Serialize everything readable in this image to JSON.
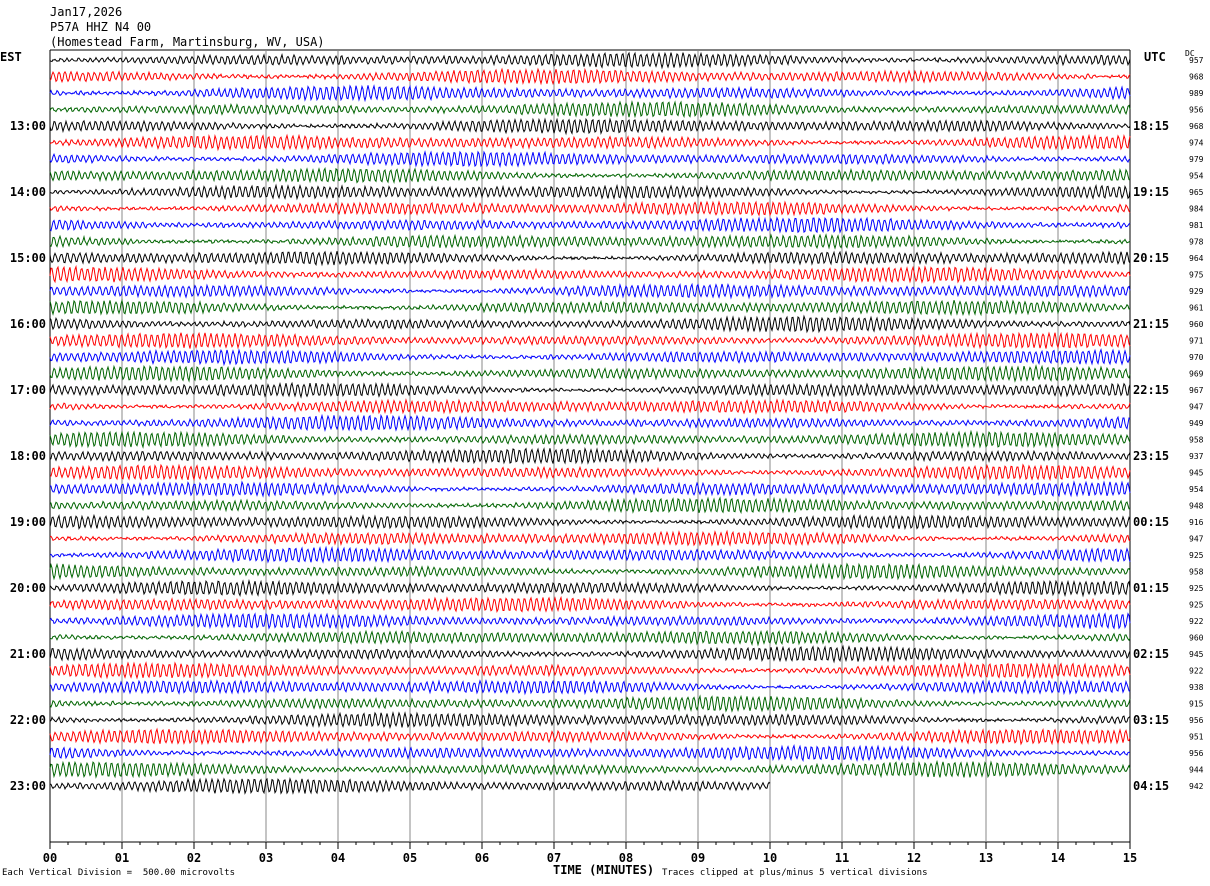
{
  "header": {
    "date": "Jan17,2026",
    "station": "P57A HHZ N4 00",
    "location": "(Homestead Farm, Martinsburg, WV, USA)"
  },
  "left_caption": "EST",
  "right_caption": "UTC",
  "dc_caption": "DC",
  "footer": {
    "scale": "Each Vertical Division =  500.00 microvolts",
    "xlabel": "TIME (MINUTES)",
    "clip_note": "Traces clipped at plus/minus 5 vertical divisions"
  },
  "colors": {
    "trace_cycle": [
      "#000000",
      "#ff0000",
      "#0000ff",
      "#006400"
    ]
  },
  "chart_data": {
    "type": "line",
    "title": "Jan17,2026 P57A HHZ N4 00",
    "xlabel": "TIME (MINUTES)",
    "xlim": [
      0,
      15
    ],
    "x_ticks": [
      "00",
      "01",
      "02",
      "03",
      "04",
      "05",
      "06",
      "07",
      "08",
      "09",
      "10",
      "11",
      "12",
      "13",
      "14",
      "15"
    ],
    "left_hour_labels": [
      "13:00",
      "14:00",
      "15:00",
      "16:00",
      "17:00",
      "18:00",
      "19:00",
      "20:00",
      "21:00",
      "22:00",
      "23:00"
    ],
    "right_hour_labels": [
      "18:15",
      "19:15",
      "20:15",
      "21:15",
      "22:15",
      "23:15",
      "00:15",
      "01:15",
      "02:15",
      "03:15",
      "04:15"
    ],
    "dc_values": [
      "957",
      "968",
      "989",
      "956",
      "968",
      "974",
      "979",
      "954",
      "965",
      "984",
      "981",
      "978",
      "964",
      "975",
      "929",
      "961",
      "960",
      "971",
      "970",
      "969",
      "967",
      "947",
      "949",
      "958",
      "937",
      "945",
      "954",
      "948",
      "916",
      "947",
      "925",
      "958",
      "925",
      "925",
      "922",
      "960",
      "945",
      "922",
      "938",
      "915",
      "956",
      "951",
      "956",
      "944",
      "942"
    ],
    "grid": true
  }
}
